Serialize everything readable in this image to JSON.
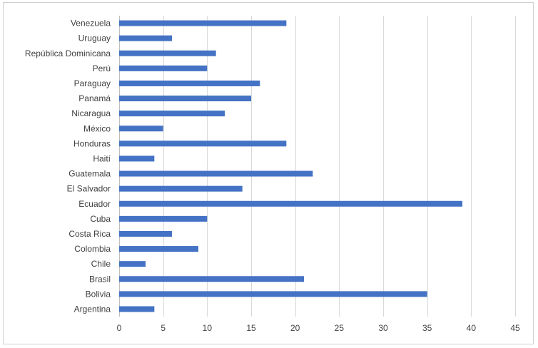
{
  "chart_data": {
    "type": "bar",
    "orientation": "horizontal",
    "title": "",
    "xlabel": "",
    "ylabel": "",
    "categories": [
      "Venezuela",
      "Uruguay",
      "República Dominicana",
      "Perú",
      "Paraguay",
      "Panamá",
      "Nicaragua",
      "México",
      "Honduras",
      "Haití",
      "Guatemala",
      "El Salvador",
      "Ecuador",
      "Cuba",
      "Costa Rica",
      "Colombia",
      "Chile",
      "Brasil",
      "Bolivia",
      "Argentina"
    ],
    "values": [
      19,
      6,
      11,
      10,
      16,
      15,
      12,
      5,
      19,
      4,
      22,
      14,
      39,
      10,
      6,
      9,
      3,
      21,
      35,
      4
    ],
    "xlim": [
      0,
      45
    ],
    "xticks": [
      0,
      5,
      10,
      15,
      20,
      25,
      30,
      35,
      40,
      45
    ],
    "grid": true,
    "legend": "none",
    "bar_color": "#4472c4"
  }
}
